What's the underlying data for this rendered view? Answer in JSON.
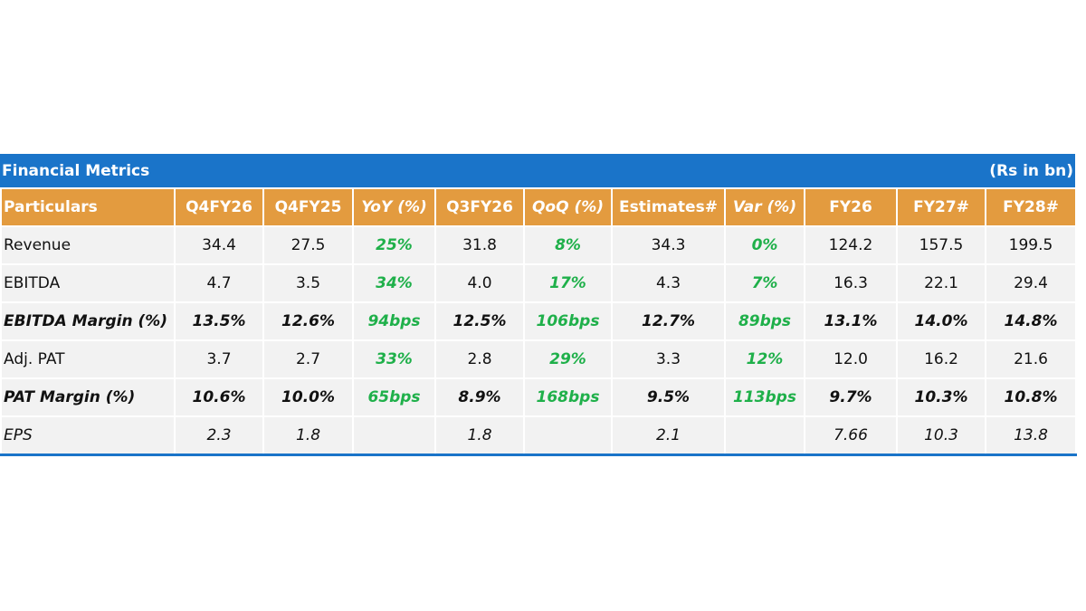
{
  "table": {
    "title": "Financial Metrics",
    "unit": "(Rs in bn)",
    "header": [
      "Particulars",
      "Q4FY26",
      "Q4FY25",
      "YoY (%)",
      "Q3FY26",
      "QoQ (%)",
      "Estimates#",
      "Var (%)",
      "FY26",
      "FY27#",
      "FY28#"
    ],
    "rows": [
      [
        "Revenue",
        "34.4",
        "27.5",
        "25%",
        "31.8",
        "8%",
        "34.3",
        "0%",
        "124.2",
        "157.5",
        "199.5"
      ],
      [
        "EBITDA",
        "4.7",
        "3.5",
        "34%",
        "4.0",
        "17%",
        "4.3",
        "7%",
        "16.3",
        "22.1",
        "29.4"
      ],
      [
        "EBITDA Margin (%)",
        "13.5%",
        "12.6%",
        "94bps",
        "12.5%",
        "106bps",
        "12.7%",
        "89bps",
        "13.1%",
        "14.0%",
        "14.8%"
      ],
      [
        "Adj. PAT",
        "3.7",
        "2.7",
        "33%",
        "2.8",
        "29%",
        "3.3",
        "12%",
        "12.0",
        "16.2",
        "21.6"
      ],
      [
        "PAT Margin (%)",
        "10.6%",
        "10.0%",
        "65bps",
        "8.9%",
        "168bps",
        "9.5%",
        "113bps",
        "9.7%",
        "10.3%",
        "10.8%"
      ],
      [
        "EPS",
        "2.3",
        "1.8",
        null,
        "1.8",
        null,
        "2.1",
        null,
        "7.66",
        "10.3",
        "13.8"
      ]
    ]
  }
}
